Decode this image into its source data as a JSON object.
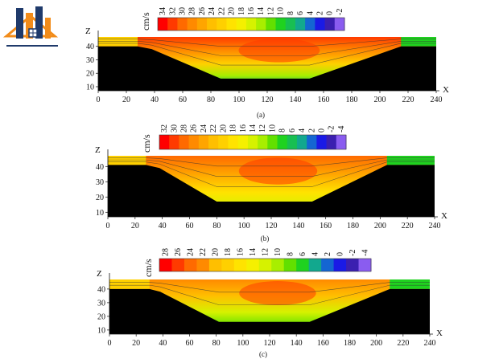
{
  "logo": {
    "name": "building-logo"
  },
  "colors": {
    "scale": [
      "#ff0000",
      "#ff3a00",
      "#ff6a00",
      "#ff8a00",
      "#ffa500",
      "#ffbf00",
      "#ffd000",
      "#ffe300",
      "#f5f000",
      "#d6f200",
      "#a8ee00",
      "#62e000",
      "#1fd21f",
      "#18bf52",
      "#12a88e",
      "#1466d2",
      "#1a1ae6",
      "#3b1fb0",
      "#8a5cf0"
    ],
    "ground": "#000000"
  },
  "chart_data": [
    {
      "type": "heatmap",
      "panel_label": "(a)",
      "unit": "cm/s",
      "colorbar_ticks": [
        "34",
        "32",
        "30",
        "28",
        "26",
        "24",
        "22",
        "20",
        "18",
        "16",
        "14",
        "12",
        "10",
        "8",
        "6",
        "4",
        "2",
        "0",
        "-2"
      ],
      "xlabel": "X",
      "ylabel": "Z",
      "xticks": [
        0,
        20,
        40,
        60,
        80,
        100,
        120,
        140,
        160,
        180,
        200,
        220,
        240
      ],
      "yticks": [
        10,
        20,
        30,
        40
      ],
      "xlim": [
        0,
        240
      ],
      "ylim": [
        7,
        47
      ],
      "bed_profile": {
        "x": [
          0,
          28,
          38,
          87,
          150,
          215,
          240
        ],
        "z": [
          40,
          40,
          38,
          16,
          16,
          40,
          40
        ]
      },
      "water_surface": 47
    },
    {
      "type": "heatmap",
      "panel_label": "(b)",
      "unit": "cm/s",
      "colorbar_ticks": [
        "32",
        "30",
        "28",
        "26",
        "24",
        "22",
        "20",
        "18",
        "16",
        "14",
        "12",
        "10",
        "8",
        "6",
        "4",
        "2",
        "0",
        "-2",
        "-4"
      ],
      "xlabel": "X",
      "ylabel": "Z",
      "xticks": [
        0,
        20,
        40,
        60,
        80,
        100,
        120,
        140,
        160,
        180,
        200,
        220,
        240
      ],
      "yticks": [
        10,
        20,
        30,
        40
      ],
      "xlim": [
        0,
        240
      ],
      "ylim": [
        7,
        47
      ],
      "bed_profile": {
        "x": [
          0,
          28,
          38,
          80,
          150,
          205,
          240
        ],
        "z": [
          41,
          41,
          39,
          17,
          17,
          41,
          41
        ]
      },
      "water_surface": 47
    },
    {
      "type": "heatmap",
      "panel_label": "(c)",
      "unit": "cm/s",
      "colorbar_ticks": [
        "28",
        "26",
        "24",
        "22",
        "20",
        "18",
        "16",
        "14",
        "12",
        "10",
        "8",
        "6",
        "4",
        "2",
        "0",
        "-2",
        "-4"
      ],
      "xlabel": "X",
      "ylabel": "Z",
      "xticks": [
        0,
        20,
        40,
        60,
        80,
        100,
        120,
        140,
        160,
        180,
        200,
        220,
        240
      ],
      "yticks": [
        10,
        20,
        30,
        40
      ],
      "xlim": [
        0,
        240
      ],
      "ylim": [
        7,
        47
      ],
      "bed_profile": {
        "x": [
          0,
          30,
          38,
          82,
          150,
          210,
          240
        ],
        "z": [
          40,
          40,
          38,
          16,
          16,
          40,
          40
        ]
      },
      "water_surface": 47
    }
  ]
}
